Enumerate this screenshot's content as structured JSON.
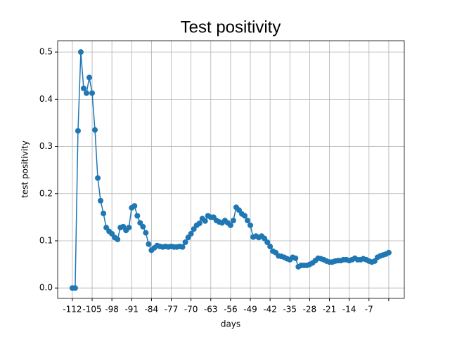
{
  "chart_data": {
    "type": "line",
    "title": "Test positivity",
    "xlabel": "days",
    "ylabel": "test positivity",
    "x": [
      -112,
      -111,
      -110,
      -109,
      -108,
      -107,
      -106,
      -105,
      -104,
      -103,
      -102,
      -101,
      -100,
      -99,
      -98,
      -97,
      -96,
      -95,
      -94,
      -93,
      -92,
      -91,
      -90,
      -89,
      -88,
      -87,
      -86,
      -85,
      -84,
      -83,
      -82,
      -81,
      -80,
      -79,
      -78,
      -77,
      -76,
      -75,
      -74,
      -73,
      -72,
      -71,
      -70,
      -69,
      -68,
      -67,
      -66,
      -65,
      -64,
      -63,
      -62,
      -61,
      -60,
      -59,
      -58,
      -57,
      -56,
      -55,
      -54,
      -53,
      -52,
      -51,
      -50,
      -49,
      -48,
      -47,
      -46,
      -45,
      -44,
      -43,
      -42,
      -41,
      -40,
      -39,
      -38,
      -37,
      -36,
      -35,
      -34,
      -33,
      -32,
      -31,
      -30,
      -29,
      -28,
      -27,
      -26,
      -25,
      -24,
      -23,
      -22,
      -21,
      -20,
      -19,
      -18,
      -17,
      -16,
      -15,
      -14,
      -13,
      -12,
      -11,
      -10,
      -9,
      -8,
      -7,
      -6,
      -5,
      -4,
      -3,
      -2,
      -1,
      0
    ],
    "values": [
      0,
      0,
      0.333,
      0.5,
      0.423,
      0.413,
      0.446,
      0.413,
      0.335,
      0.233,
      0.185,
      0.158,
      0.128,
      0.12,
      0.115,
      0.107,
      0.103,
      0.128,
      0.13,
      0.122,
      0.128,
      0.17,
      0.174,
      0.153,
      0.138,
      0.13,
      0.117,
      0.093,
      0.08,
      0.085,
      0.09,
      0.088,
      0.087,
      0.088,
      0.087,
      0.088,
      0.087,
      0.087,
      0.088,
      0.087,
      0.097,
      0.107,
      0.115,
      0.125,
      0.133,
      0.137,
      0.147,
      0.142,
      0.153,
      0.15,
      0.15,
      0.143,
      0.14,
      0.138,
      0.143,
      0.138,
      0.133,
      0.143,
      0.171,
      0.165,
      0.157,
      0.153,
      0.143,
      0.133,
      0.108,
      0.11,
      0.107,
      0.11,
      0.105,
      0.097,
      0.088,
      0.078,
      0.075,
      0.068,
      0.067,
      0.065,
      0.062,
      0.06,
      0.065,
      0.063,
      0.045,
      0.048,
      0.048,
      0.048,
      0.05,
      0.053,
      0.058,
      0.063,
      0.062,
      0.06,
      0.057,
      0.055,
      0.055,
      0.057,
      0.058,
      0.058,
      0.06,
      0.06,
      0.058,
      0.06,
      0.063,
      0.06,
      0.06,
      0.062,
      0.06,
      0.057,
      0.055,
      0.057,
      0.065,
      0.068,
      0.07,
      0.072,
      0.075
    ],
    "color": "#1f77b4",
    "xlim": [
      -117.2,
      5.5
    ],
    "xticks": [
      -112,
      -105,
      -98,
      -91,
      -84,
      -77,
      -70,
      -63,
      -56,
      -49,
      -42,
      -35,
      -28,
      -21,
      -14,
      -7,
      {
        "value": 0,
        "label": null
      }
    ],
    "ylim": [
      -0.022,
      0.524
    ],
    "yticks": [
      {
        "value": 0,
        "label": "0.0"
      },
      0.1,
      0.2,
      0.3,
      0.4,
      0.5
    ],
    "grid": true
  }
}
